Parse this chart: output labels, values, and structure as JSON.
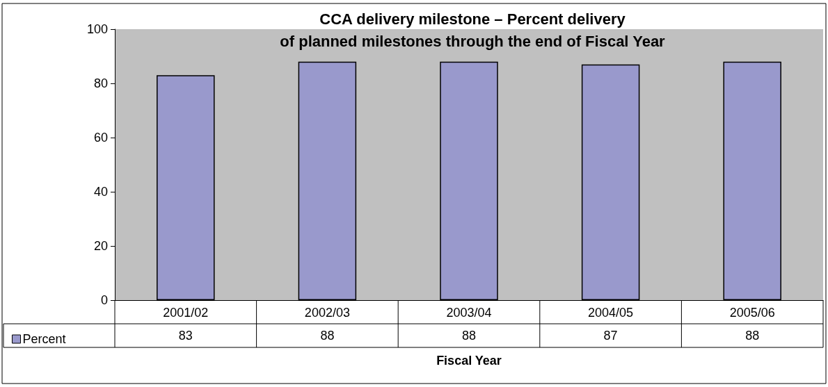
{
  "chart_data": {
    "type": "bar",
    "title": "CCA delivery milestone – Percent delivery\nof planned milestones through the end of Fiscal Year",
    "xlabel": "Fiscal Year",
    "categories": [
      "2001/02",
      "2002/03",
      "2003/04",
      "2004/05",
      "2005/06"
    ],
    "series": [
      {
        "name": "Percent",
        "color": "#9999cc",
        "values": [
          83,
          88,
          88,
          87,
          88
        ]
      }
    ],
    "ylim": [
      0,
      100
    ],
    "yticks": [
      0,
      20,
      40,
      60,
      80,
      100
    ],
    "grid": false,
    "legend": "bottom left",
    "data_labels": true
  }
}
